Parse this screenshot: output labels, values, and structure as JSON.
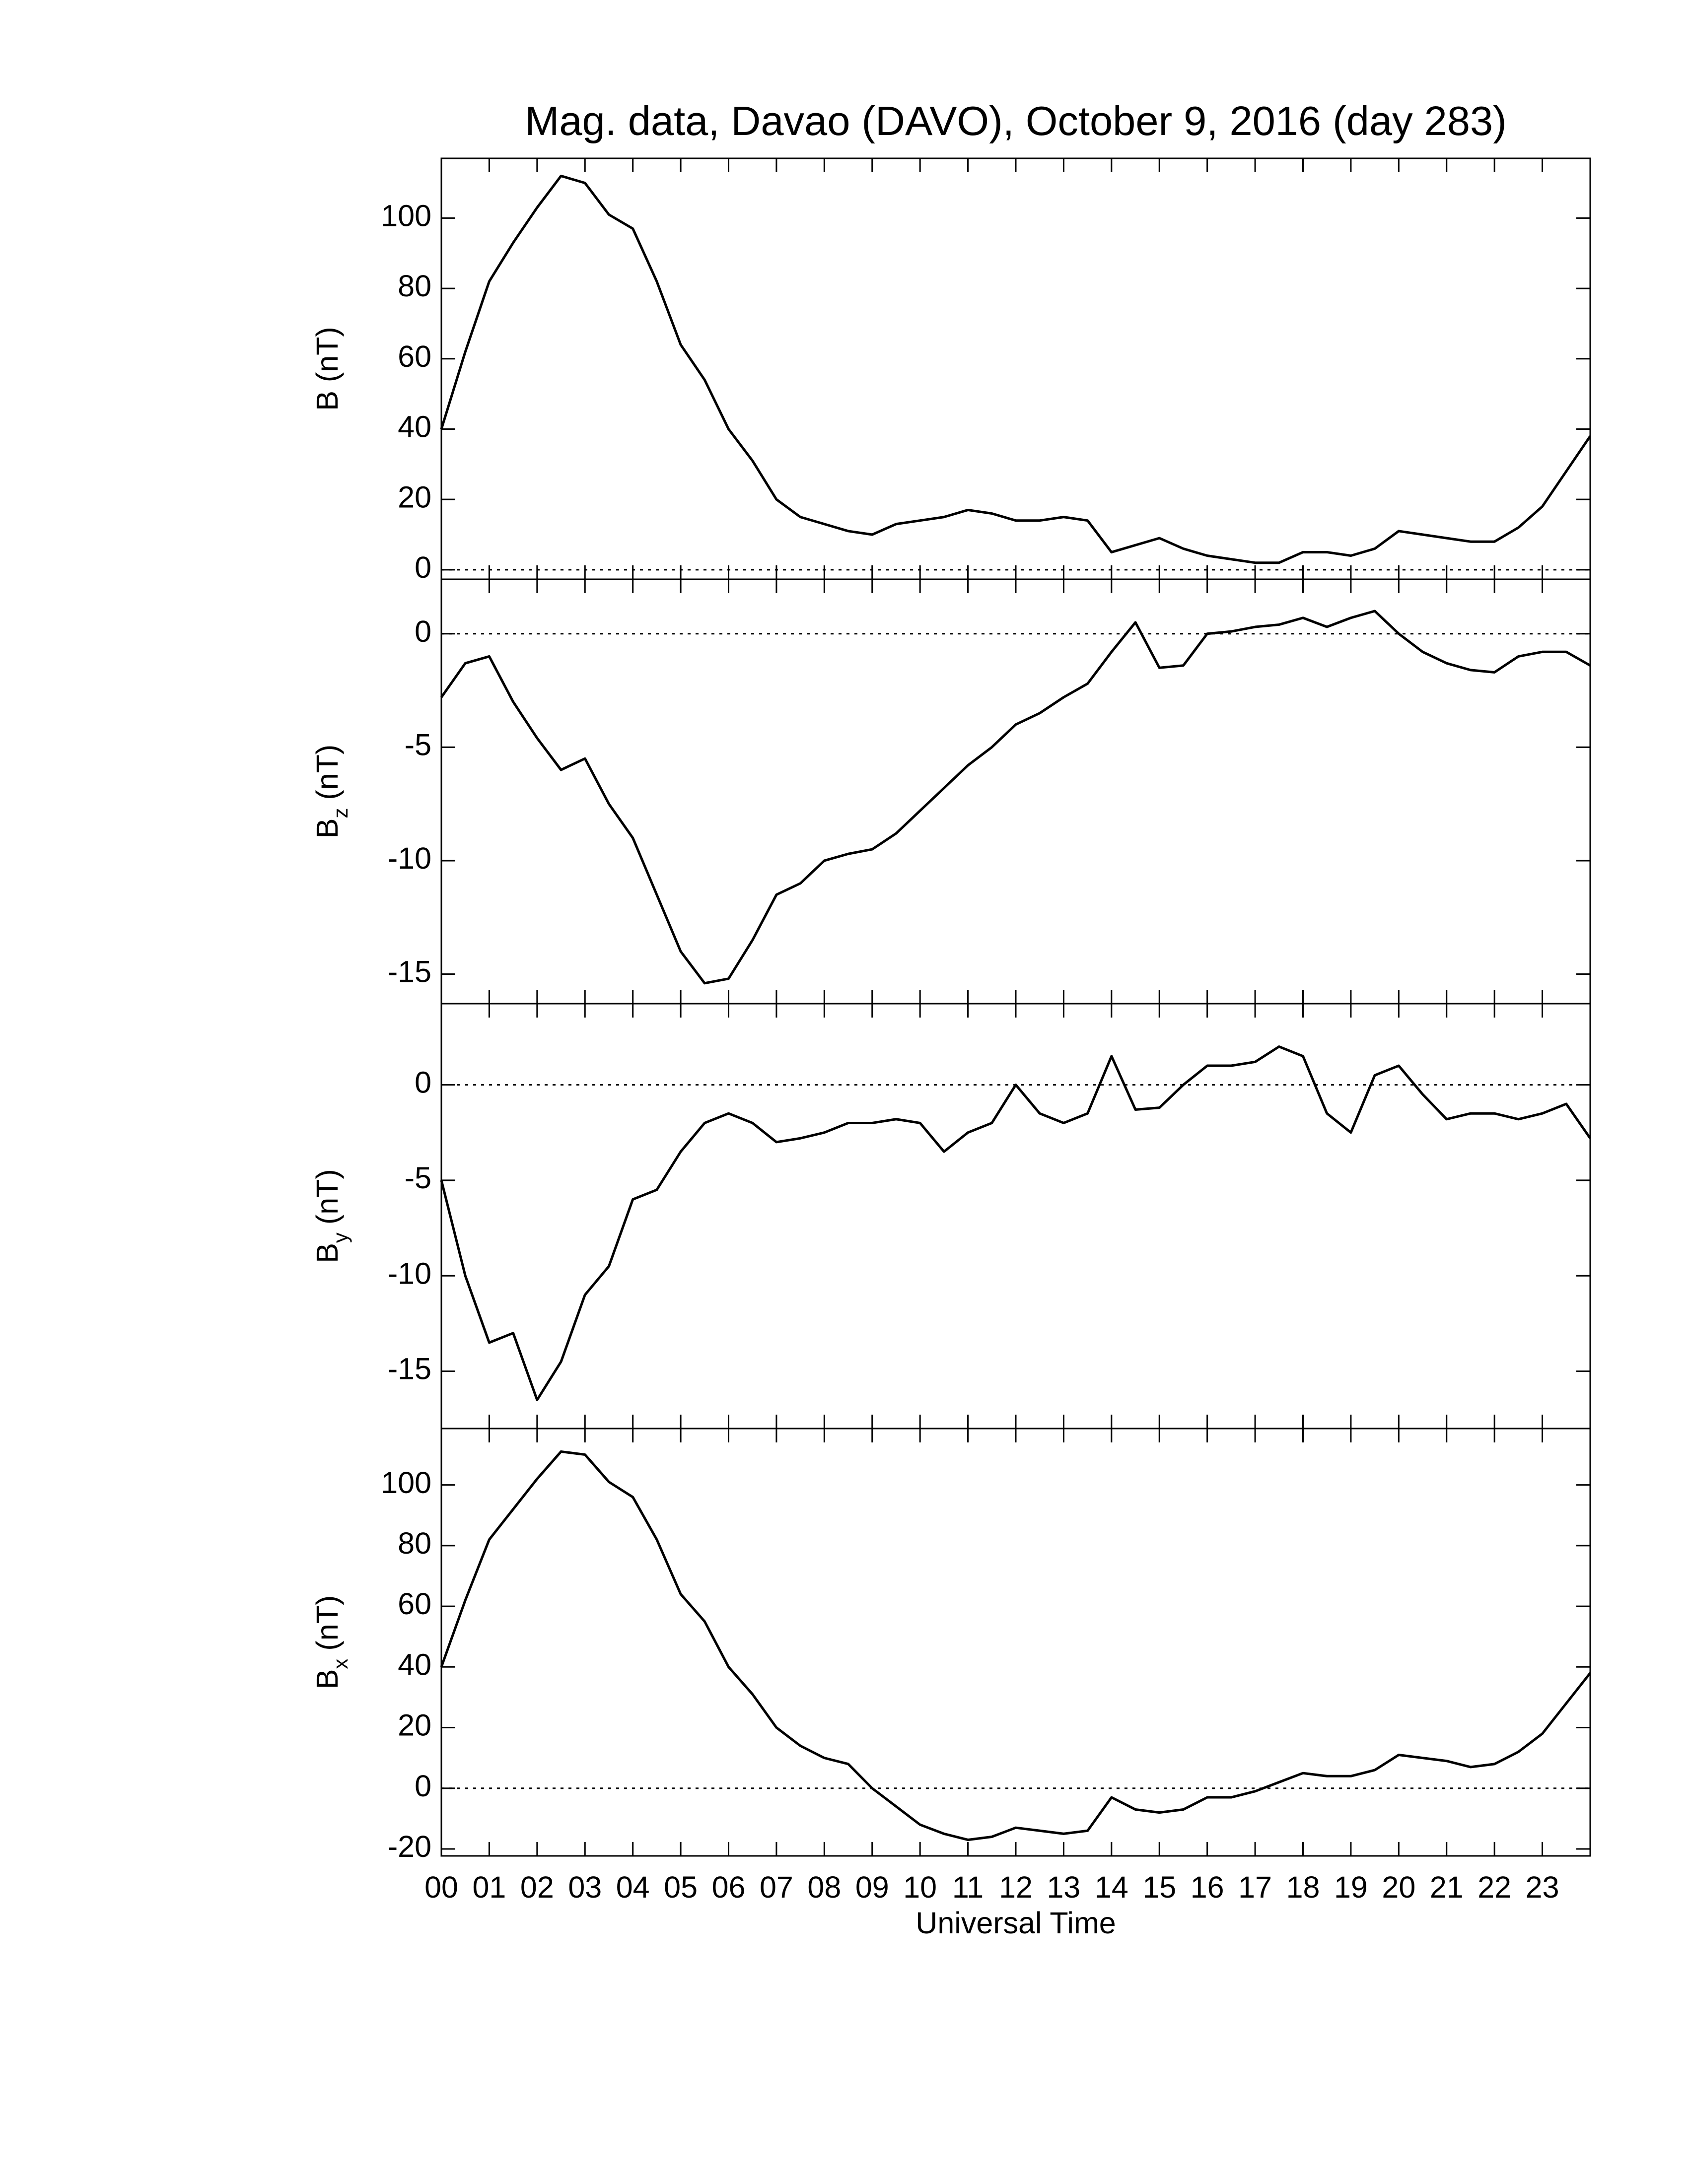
{
  "chart_data": [
    {
      "type": "line",
      "title": "Mag. data, Davao (DAVO), October 9, 2016 (day 283)",
      "ylabel": "B (nT)",
      "color": "#000000",
      "xlim": [
        0,
        24
      ],
      "ylim": [
        -2.7,
        117
      ],
      "yticks": [
        0,
        20,
        40,
        60,
        80,
        100
      ],
      "hline": 0,
      "x": [
        0,
        0.5,
        1,
        1.5,
        2,
        2.5,
        3,
        3.5,
        4,
        4.5,
        5,
        5.5,
        6,
        6.5,
        7,
        7.5,
        8,
        8.5,
        9,
        9.5,
        10,
        10.5,
        11,
        11.5,
        12,
        12.5,
        13,
        13.5,
        14,
        14.5,
        15,
        15.5,
        16,
        16.5,
        17,
        17.5,
        18,
        18.5,
        19,
        19.5,
        20,
        20.5,
        21,
        21.5,
        22,
        22.5,
        23,
        23.5,
        24
      ],
      "values": [
        40,
        62,
        82,
        93,
        103,
        112,
        110,
        101,
        97,
        82,
        64,
        54,
        40,
        31,
        20,
        15,
        13,
        11,
        10,
        13,
        14,
        15,
        17,
        16,
        14,
        14,
        15,
        14,
        5,
        7,
        9,
        6,
        4,
        3,
        2,
        2,
        5,
        5,
        4,
        6,
        11,
        10,
        9,
        8,
        8,
        12,
        18,
        28,
        38
      ]
    },
    {
      "type": "line",
      "ylabel": [
        "B",
        "z",
        "(nT)"
      ],
      "color": "#000000",
      "xlim": [
        0,
        24
      ],
      "ylim": [
        -16.3,
        2.4
      ],
      "yticks": [
        -15,
        -10,
        -5,
        0
      ],
      "hline": 0,
      "x": [
        0,
        0.5,
        1,
        1.5,
        2,
        2.5,
        3,
        3.5,
        4,
        4.5,
        5,
        5.5,
        6,
        6.5,
        7,
        7.5,
        8,
        8.5,
        9,
        9.5,
        10,
        10.5,
        11,
        11.5,
        12,
        12.5,
        13,
        13.5,
        14,
        14.5,
        15,
        15.5,
        16,
        16.5,
        17,
        17.5,
        18,
        18.5,
        19,
        19.5,
        20,
        20.5,
        21,
        21.5,
        22,
        22.5,
        23,
        23.5,
        24
      ],
      "values": [
        -2.8,
        -1.3,
        -1,
        -3,
        -4.6,
        -6,
        -5.5,
        -7.5,
        -9,
        -11.5,
        -14,
        -15.4,
        -15.2,
        -13.5,
        -11.5,
        -11,
        -10,
        -9.7,
        -9.5,
        -8.8,
        -7.8,
        -6.8,
        -5.8,
        -5,
        -4,
        -3.5,
        -2.8,
        -2.2,
        -0.8,
        0.5,
        -1.5,
        -1.4,
        0,
        0.1,
        0.3,
        0.4,
        0.7,
        0.3,
        0.7,
        1,
        0,
        -0.8,
        -1.3,
        -1.6,
        -1.7,
        -1,
        -0.8,
        -0.8,
        -1.4
      ]
    },
    {
      "type": "line",
      "ylabel": [
        "B",
        "y",
        "(nT)"
      ],
      "color": "#000000",
      "xlim": [
        0,
        24
      ],
      "ylim": [
        -18,
        4.25
      ],
      "yticks": [
        -15,
        -10,
        -5,
        0
      ],
      "hline": 0,
      "x": [
        0,
        0.5,
        1,
        1.5,
        2,
        2.5,
        3,
        3.5,
        4,
        4.5,
        5,
        5.5,
        6,
        6.5,
        7,
        7.5,
        8,
        8.5,
        9,
        9.5,
        10,
        10.5,
        11,
        11.5,
        12,
        12.5,
        13,
        13.5,
        14,
        14.5,
        15,
        15.5,
        16,
        16.5,
        17,
        17.5,
        18,
        18.5,
        19,
        19.5,
        20,
        20.5,
        21,
        21.5,
        22,
        22.5,
        23,
        23.5,
        24
      ],
      "values": [
        -5,
        -10,
        -13.5,
        -13,
        -16.5,
        -14.5,
        -11,
        -9.5,
        -6,
        -5.5,
        -3.5,
        -2,
        -1.5,
        -2,
        -3,
        -2.8,
        -2.5,
        -2,
        -2,
        -1.8,
        -2,
        -3.5,
        -2.5,
        -2,
        0,
        -1.5,
        -2,
        -1.5,
        1.5,
        -1.3,
        -1.2,
        0,
        1,
        1,
        1.2,
        2,
        1.5,
        -1.5,
        -2.5,
        0.5,
        1,
        -0.5,
        -1.8,
        -1.5,
        -1.5,
        -1.8,
        -1.5,
        -1,
        -2.8
      ]
    },
    {
      "type": "line",
      "ylabel": [
        "B",
        "x",
        "(nT)"
      ],
      "xlabel": "Universal Time",
      "color": "#000000",
      "xlim": [
        0,
        24
      ],
      "ylim": [
        -22.3,
        118.6
      ],
      "yticks": [
        -20,
        0,
        20,
        40,
        60,
        80,
        100
      ],
      "hline": 0,
      "xticks": [
        {
          "value": 0,
          "label": "00"
        },
        {
          "value": 1,
          "label": "01"
        },
        {
          "value": 2,
          "label": "02"
        },
        {
          "value": 3,
          "label": "03"
        },
        {
          "value": 4,
          "label": "04"
        },
        {
          "value": 5,
          "label": "05"
        },
        {
          "value": 6,
          "label": "06"
        },
        {
          "value": 7,
          "label": "07"
        },
        {
          "value": 8,
          "label": "08"
        },
        {
          "value": 9,
          "label": "09"
        },
        10,
        11,
        12,
        13,
        14,
        15,
        16,
        17,
        18,
        19,
        20,
        21,
        22,
        23
      ],
      "x": [
        0,
        0.5,
        1,
        1.5,
        2,
        2.5,
        3,
        3.5,
        4,
        4.5,
        5,
        5.5,
        6,
        6.5,
        7,
        7.5,
        8,
        8.5,
        9,
        9.5,
        10,
        10.5,
        11,
        11.5,
        12,
        12.5,
        13,
        13.5,
        14,
        14.5,
        15,
        15.5,
        16,
        16.5,
        17,
        17.5,
        18,
        18.5,
        19,
        19.5,
        20,
        20.5,
        21,
        21.5,
        22,
        22.5,
        23,
        23.5,
        24
      ],
      "values": [
        40,
        62,
        82,
        92,
        102,
        111,
        110,
        101,
        96,
        82,
        64,
        55,
        40,
        31,
        20,
        14,
        10,
        8,
        0,
        -6,
        -12,
        -15,
        -17,
        -16,
        -13,
        -14,
        -15,
        -14,
        -3,
        -7,
        -8,
        -7,
        -3,
        -3,
        -1,
        2,
        5,
        4,
        4,
        6,
        11,
        10,
        9,
        7,
        8,
        12,
        18,
        28,
        38
      ]
    }
  ]
}
